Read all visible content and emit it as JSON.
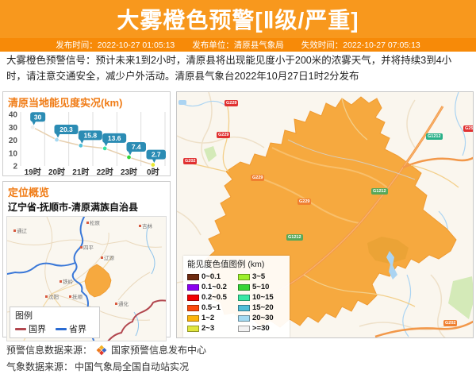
{
  "header": {
    "title": "大雾橙色预警[Ⅱ级/严重]",
    "meta": [
      {
        "label": "发布时间：",
        "value": "2022-10-27 01:05:13"
      },
      {
        "label": "发布单位：",
        "value": "清原县气象局"
      },
      {
        "label": "失效时间：",
        "value": "2022-10-27 07:05:13"
      }
    ]
  },
  "warning_text": "大雾橙色预警信号：预计未来1到2小时，清原县将出现能见度小于200米的浓雾天气，并将持续3到4小时，请注意交通安全，减少户外活动。清原县气象台2022年10月27日1时2分发布",
  "chart_data": {
    "type": "line",
    "title": "清原当地能见度实况(km)",
    "categories": [
      "19时",
      "20时",
      "21时",
      "22时",
      "23时",
      "0时"
    ],
    "values": [
      30,
      20.3,
      15.8,
      13.6,
      7.4,
      2.7
    ],
    "y_ticks": [
      40,
      30,
      20,
      10,
      2
    ],
    "ylim": [
      2,
      40
    ],
    "grid": true,
    "legend_position": "none",
    "point_colors": [
      "#f0f0ee",
      "#a6d9f2",
      "#52c0d8",
      "#3ae2a2",
      "#35d437",
      "#e9e930"
    ],
    "line_color": "#e7cfae",
    "label_bg": "#2b8cb4"
  },
  "location": {
    "title": "定位概览",
    "region_path": "辽宁省-抚顺市-清原满族自治县",
    "legend_title": "图例",
    "legend_items": [
      {
        "label": "国界",
        "color": "#b2474f"
      },
      {
        "label": "省界",
        "color": "#2a6bd2"
      }
    ],
    "city_labels": [
      "通辽",
      "松原",
      "吉林",
      "四平",
      "辽源",
      "铁岭",
      "沈阳",
      "抚顺",
      "通化"
    ]
  },
  "vis_legend": {
    "title": "能见度色值图例",
    "unit": "(km)",
    "items": [
      {
        "range": "0~0.1",
        "color": "#6d2a10"
      },
      {
        "range": "0.1~0.2",
        "color": "#8a00f0"
      },
      {
        "range": "0.2~0.5",
        "color": "#f20000"
      },
      {
        "range": "0.5~1",
        "color": "#fc4a0c"
      },
      {
        "range": "1~2",
        "color": "#fcb40a"
      },
      {
        "range": "2~3",
        "color": "#e0e63c"
      },
      {
        "range": "3~5",
        "color": "#9cf02a"
      },
      {
        "range": "5~10",
        "color": "#35d437"
      },
      {
        "range": "10~15",
        "color": "#38e8a4"
      },
      {
        "range": "15~20",
        "color": "#50bed8"
      },
      {
        "range": "20~30",
        "color": "#a4daf2"
      },
      {
        "range": ">=30",
        "color": "#f2f2f2"
      }
    ]
  },
  "big_map": {
    "road_badges": [
      {
        "label": "G229",
        "color": "#e03030"
      },
      {
        "label": "G229",
        "color": "#e03030"
      },
      {
        "label": "G202",
        "color": "#e03030"
      },
      {
        "label": "G229",
        "color": "#f08030"
      },
      {
        "label": "G229",
        "color": "#f08030"
      },
      {
        "label": "G1212",
        "color": "#58a858"
      },
      {
        "label": "G1212",
        "color": "#58a858"
      },
      {
        "label": "G1212",
        "color": "#28b088"
      },
      {
        "label": "G25",
        "color": "#e03030"
      },
      {
        "label": "G202",
        "color": "#f08030"
      }
    ]
  },
  "footer": {
    "line1_label": "预警信息数据来源：",
    "line1_value": "国家预警信息发布中心",
    "line2_label": "气象数据来源：",
    "line2_value": "中国气象局全国自动站实况"
  },
  "colors": {
    "header_bg": "#f8981d",
    "meta_bar_bg": "#f78a08",
    "section_title": "#f07c16",
    "county_fill": "#f6a93f"
  }
}
